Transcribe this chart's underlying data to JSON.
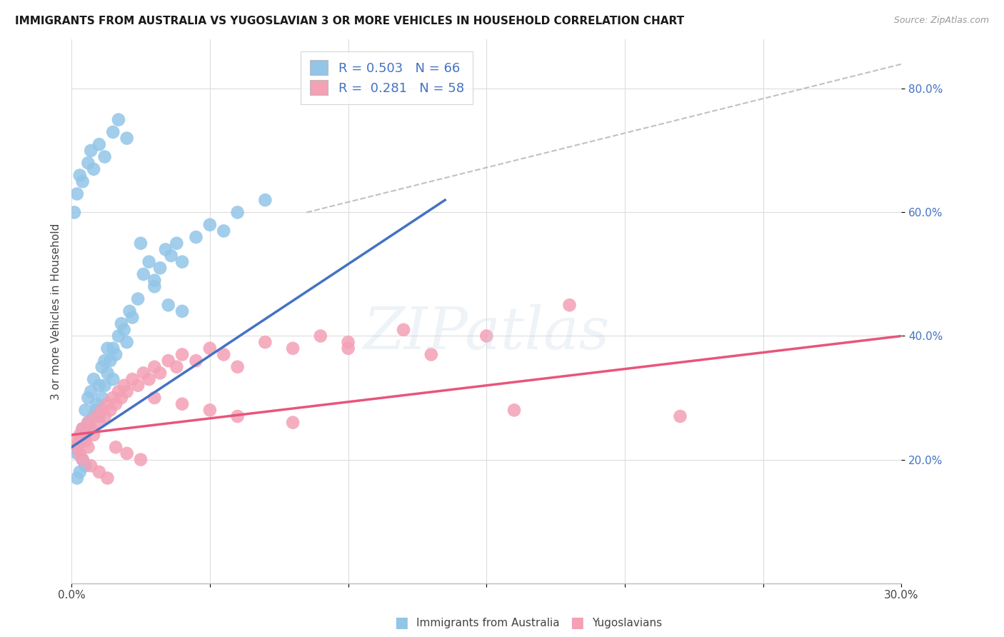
{
  "title": "IMMIGRANTS FROM AUSTRALIA VS YUGOSLAVIAN 3 OR MORE VEHICLES IN HOUSEHOLD CORRELATION CHART",
  "source": "Source: ZipAtlas.com",
  "ylabel": "3 or more Vehicles in Household",
  "y_ticks": [
    0.2,
    0.4,
    0.6,
    0.8
  ],
  "y_tick_labels": [
    "20.0%",
    "40.0%",
    "60.0%",
    "80.0%"
  ],
  "x_tick_left": "0.0%",
  "x_tick_right": "30.0%",
  "xlim": [
    0.0,
    0.3
  ],
  "ylim": [
    0.0,
    0.88
  ],
  "color_blue": "#92C5E8",
  "color_pink": "#F4A0B5",
  "color_blue_line": "#4472C4",
  "color_pink_line": "#E8557A",
  "color_gray_dashed": "#BBBBBB",
  "watermark": "ZIPatlas",
  "aus_scatter_x": [
    0.001,
    0.002,
    0.002,
    0.003,
    0.003,
    0.004,
    0.004,
    0.005,
    0.005,
    0.005,
    0.006,
    0.006,
    0.007,
    0.007,
    0.008,
    0.008,
    0.009,
    0.009,
    0.01,
    0.01,
    0.011,
    0.011,
    0.012,
    0.012,
    0.013,
    0.013,
    0.014,
    0.015,
    0.015,
    0.016,
    0.017,
    0.018,
    0.019,
    0.02,
    0.021,
    0.022,
    0.024,
    0.026,
    0.028,
    0.03,
    0.032,
    0.034,
    0.036,
    0.038,
    0.04,
    0.045,
    0.05,
    0.055,
    0.06,
    0.07,
    0.001,
    0.002,
    0.003,
    0.004,
    0.006,
    0.007,
    0.008,
    0.01,
    0.012,
    0.015,
    0.017,
    0.02,
    0.025,
    0.03,
    0.035,
    0.04
  ],
  "aus_scatter_y": [
    0.22,
    0.17,
    0.21,
    0.18,
    0.23,
    0.2,
    0.25,
    0.19,
    0.24,
    0.28,
    0.26,
    0.3,
    0.25,
    0.31,
    0.27,
    0.33,
    0.28,
    0.29,
    0.27,
    0.32,
    0.3,
    0.35,
    0.32,
    0.36,
    0.34,
    0.38,
    0.36,
    0.33,
    0.38,
    0.37,
    0.4,
    0.42,
    0.41,
    0.39,
    0.44,
    0.43,
    0.46,
    0.5,
    0.52,
    0.49,
    0.51,
    0.54,
    0.53,
    0.55,
    0.52,
    0.56,
    0.58,
    0.57,
    0.6,
    0.62,
    0.6,
    0.63,
    0.66,
    0.65,
    0.68,
    0.7,
    0.67,
    0.71,
    0.69,
    0.73,
    0.75,
    0.72,
    0.55,
    0.48,
    0.45,
    0.44
  ],
  "yugo_scatter_x": [
    0.001,
    0.002,
    0.003,
    0.003,
    0.004,
    0.005,
    0.006,
    0.006,
    0.007,
    0.008,
    0.009,
    0.01,
    0.011,
    0.012,
    0.013,
    0.014,
    0.015,
    0.016,
    0.017,
    0.018,
    0.019,
    0.02,
    0.022,
    0.024,
    0.026,
    0.028,
    0.03,
    0.032,
    0.035,
    0.038,
    0.04,
    0.045,
    0.05,
    0.055,
    0.06,
    0.07,
    0.08,
    0.09,
    0.1,
    0.12,
    0.15,
    0.18,
    0.004,
    0.007,
    0.01,
    0.013,
    0.016,
    0.02,
    0.025,
    0.03,
    0.04,
    0.05,
    0.06,
    0.08,
    0.1,
    0.13,
    0.16,
    0.22
  ],
  "yugo_scatter_y": [
    0.23,
    0.22,
    0.24,
    0.21,
    0.25,
    0.23,
    0.22,
    0.26,
    0.25,
    0.24,
    0.27,
    0.26,
    0.28,
    0.27,
    0.29,
    0.28,
    0.3,
    0.29,
    0.31,
    0.3,
    0.32,
    0.31,
    0.33,
    0.32,
    0.34,
    0.33,
    0.35,
    0.34,
    0.36,
    0.35,
    0.37,
    0.36,
    0.38,
    0.37,
    0.35,
    0.39,
    0.38,
    0.4,
    0.39,
    0.41,
    0.4,
    0.45,
    0.2,
    0.19,
    0.18,
    0.17,
    0.22,
    0.21,
    0.2,
    0.3,
    0.29,
    0.28,
    0.27,
    0.26,
    0.38,
    0.37,
    0.28,
    0.27
  ],
  "aus_line_x": [
    0.0,
    0.135
  ],
  "aus_line_y": [
    0.22,
    0.62
  ],
  "yugo_line_x": [
    0.0,
    0.3
  ],
  "yugo_line_y": [
    0.24,
    0.4
  ],
  "dash_line_x": [
    0.085,
    0.3
  ],
  "dash_line_y": [
    0.6,
    0.84
  ]
}
